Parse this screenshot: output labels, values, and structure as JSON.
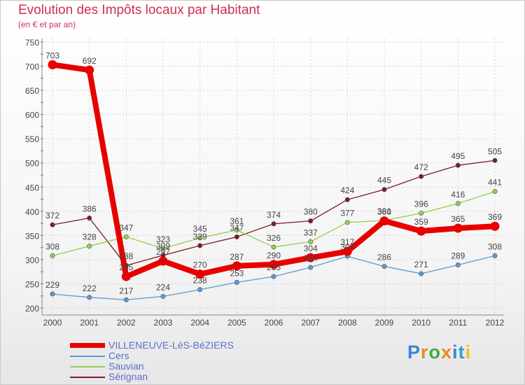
{
  "header": {
    "title": "Evolution des Impôts locaux par Habitant",
    "subtitle": "(en € et par an)"
  },
  "logo": {
    "text": "Proxiti",
    "colors": [
      "#3a86d8",
      "#e88a1a",
      "#3fae3f",
      "#e88a1a",
      "#3a86d8",
      "#2ea3c8",
      "#e8c61a"
    ]
  },
  "chart_data": {
    "type": "line",
    "title": "Evolution des Impôts locaux par Habitant",
    "subtitle": "(en € et par an)",
    "xlabel": "",
    "ylabel": "",
    "categories": [
      "2000",
      "2001",
      "2002",
      "2003",
      "2004",
      "2005",
      "2006",
      "2007",
      "2008",
      "2009",
      "2010",
      "2011",
      "2012"
    ],
    "ylim": [
      200,
      750
    ],
    "yticks": [
      200,
      250,
      300,
      350,
      400,
      450,
      500,
      550,
      600,
      650,
      700,
      750
    ],
    "grid": true,
    "legend_position": "bottom-left",
    "series": [
      {
        "name": "VILLENEUVE-LèS-BéZIERS",
        "color": "#e80000",
        "values": [
          703,
          692,
          265,
          297,
          270,
          287,
          290,
          304,
          317,
          380,
          359,
          365,
          369
        ]
      },
      {
        "name": "Cers",
        "color": "#5b9bd5",
        "values": [
          229,
          222,
          217,
          224,
          238,
          253,
          265,
          284,
          307,
          286,
          271,
          289,
          308
        ]
      },
      {
        "name": "Sauvian",
        "color": "#92d050",
        "values": [
          308,
          328,
          347,
          323,
          345,
          361,
          326,
          337,
          377,
          381,
          396,
          416,
          441
        ]
      },
      {
        "name": "Sérignan",
        "color": "#7b1c24",
        "values": [
          372,
          386,
          288,
          309,
          329,
          347,
          374,
          380,
          424,
          445,
          472,
          495,
          505
        ]
      }
    ]
  }
}
